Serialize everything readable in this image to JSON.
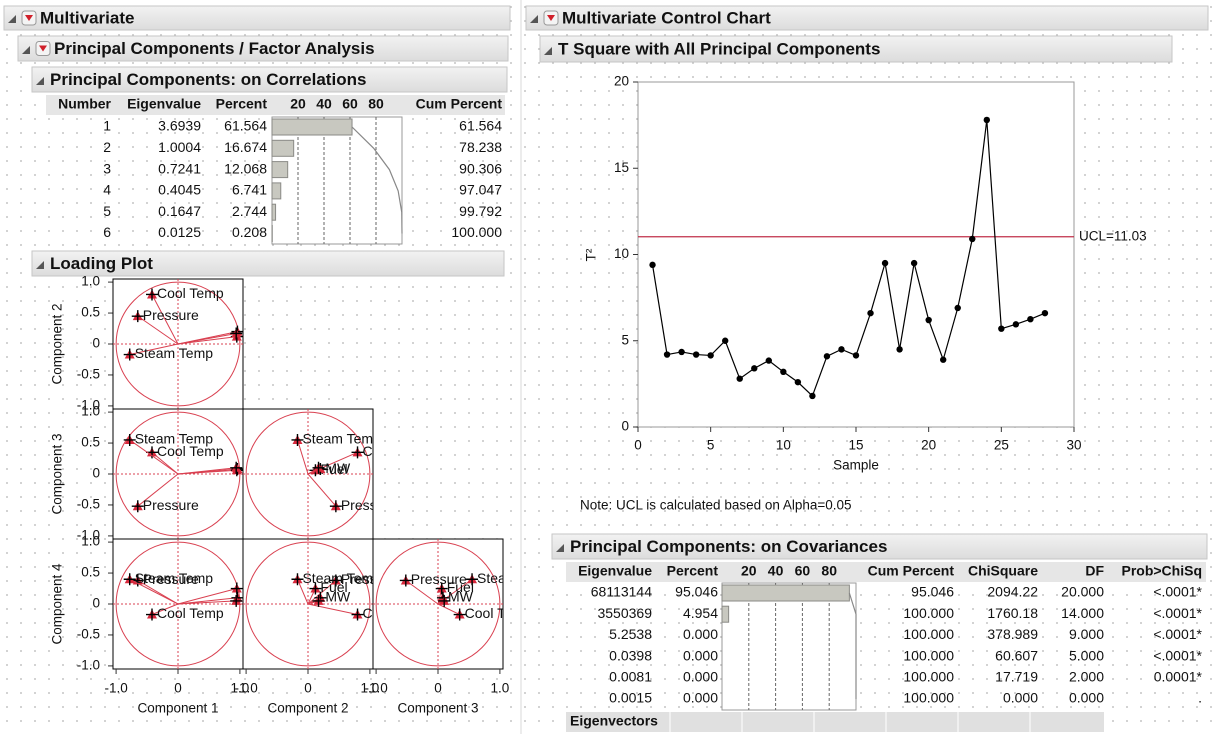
{
  "left": {
    "title": "Multivariate",
    "analysis_title": "Principal Components / Factor Analysis",
    "correlations": {
      "title": "Principal Components: on Correlations",
      "columns": [
        "Number",
        "Eigenvalue",
        "Percent",
        "Cum Percent"
      ],
      "bar_lim": [
        0,
        100
      ],
      "bar_ticks": [
        20,
        40,
        60,
        80
      ],
      "rows": [
        [
          "1",
          "3.6939",
          "61.564",
          "61.564"
        ],
        [
          "2",
          "1.0004",
          "16.674",
          "78.238"
        ],
        [
          "3",
          "0.7241",
          "12.068",
          "90.306"
        ],
        [
          "4",
          "0.4045",
          "6.741",
          "97.047"
        ],
        [
          "5",
          "0.1647",
          "2.744",
          "99.792"
        ],
        [
          "6",
          "0.0125",
          "0.208",
          "100.000"
        ]
      ]
    },
    "loading_plot": {
      "title": "Loading Plot",
      "axis_labels": [
        "Component 1",
        "Component 2",
        "Component 3",
        "Component 4"
      ],
      "lim": [
        -1.05,
        1.05
      ],
      "xticks": [
        {
          "value": -1,
          "label": "-1.0"
        },
        0,
        {
          "value": 1,
          "label": "1.0"
        }
      ],
      "yticks": [
        {
          "value": -1,
          "label": "-1.0"
        },
        -0.5,
        0,
        0.5,
        {
          "value": 1,
          "label": "1.0"
        }
      ],
      "variables": [
        {
          "label": "Cool Temp",
          "loadings": [
            -0.42,
            0.8,
            0.35,
            -0.17
          ]
        },
        {
          "label": "Pressure",
          "loadings": [
            -0.65,
            0.45,
            -0.52,
            0.38
          ]
        },
        {
          "label": "Steam Temp",
          "loadings": [
            -0.78,
            -0.17,
            0.55,
            0.4
          ]
        },
        {
          "label": "Fuel",
          "loadings": [
            0.95,
            0.12,
            0.06,
            0.25
          ]
        },
        {
          "label": "MW",
          "loadings": [
            0.96,
            0.2,
            0.08,
            0.1
          ]
        },
        {
          "label": null,
          "loadings": [
            0.94,
            0.17,
            0.1,
            0.05
          ]
        }
      ]
    }
  },
  "right": {
    "title": "Multivariate Control Chart",
    "covariances": {
      "title": "Principal Components: on Covariances",
      "columns": [
        "Eigenvalue",
        "Percent",
        "Cum Percent",
        "ChiSquare",
        "DF",
        "Prob>ChiSq"
      ],
      "bar_lim": [
        0,
        100
      ],
      "bar_ticks": [
        20,
        40,
        60,
        80
      ],
      "rows": [
        [
          "68113144",
          "95.046",
          "95.046",
          "2094.22",
          "20.000",
          "<.0001*"
        ],
        [
          "3550369",
          "4.954",
          "100.000",
          "1760.18",
          "14.000",
          "<.0001*"
        ],
        [
          "5.2538",
          "0.000",
          "100.000",
          "378.989",
          "9.000",
          "<.0001*"
        ],
        [
          "0.0398",
          "0.000",
          "100.000",
          "60.607",
          "5.000",
          "<.0001*"
        ],
        [
          "0.0081",
          "0.000",
          "100.000",
          "17.719",
          "2.000",
          "0.0001*"
        ],
        [
          "0.0015",
          "0.000",
          "100.000",
          "0.000",
          "0.000",
          "."
        ]
      ],
      "eigenvectors_title": "Eigenvectors"
    }
  },
  "chart_data": {
    "type": "line",
    "title": "T Square with All Principal Components",
    "x_label": "Sample",
    "y_label": "T²",
    "x": [
      1,
      2,
      3,
      4,
      5,
      6,
      7,
      8,
      9,
      10,
      11,
      12,
      13,
      14,
      15,
      16,
      17,
      18,
      19,
      20,
      21,
      22,
      23,
      24,
      25,
      26,
      27,
      28
    ],
    "values": [
      9.4,
      4.2,
      4.35,
      4.2,
      4.15,
      5.0,
      2.8,
      3.4,
      3.85,
      3.2,
      2.6,
      1.8,
      4.1,
      4.5,
      4.15,
      6.6,
      9.5,
      4.5,
      9.5,
      6.2,
      3.9,
      6.9,
      10.9,
      17.8,
      5.7,
      5.95,
      6.25,
      6.6
    ],
    "color": "#000000",
    "xlim": [
      0,
      30
    ],
    "xticks": [
      0,
      5,
      10,
      15,
      20,
      25,
      30
    ],
    "ylim": [
      0,
      20
    ],
    "yticks": [
      0,
      5,
      10,
      15,
      20
    ],
    "ucl": {
      "value": 11.03,
      "label": "UCL=11.03",
      "color": "#c0304a"
    },
    "note": "Note: UCL is calculated based on Alpha=0.05"
  }
}
